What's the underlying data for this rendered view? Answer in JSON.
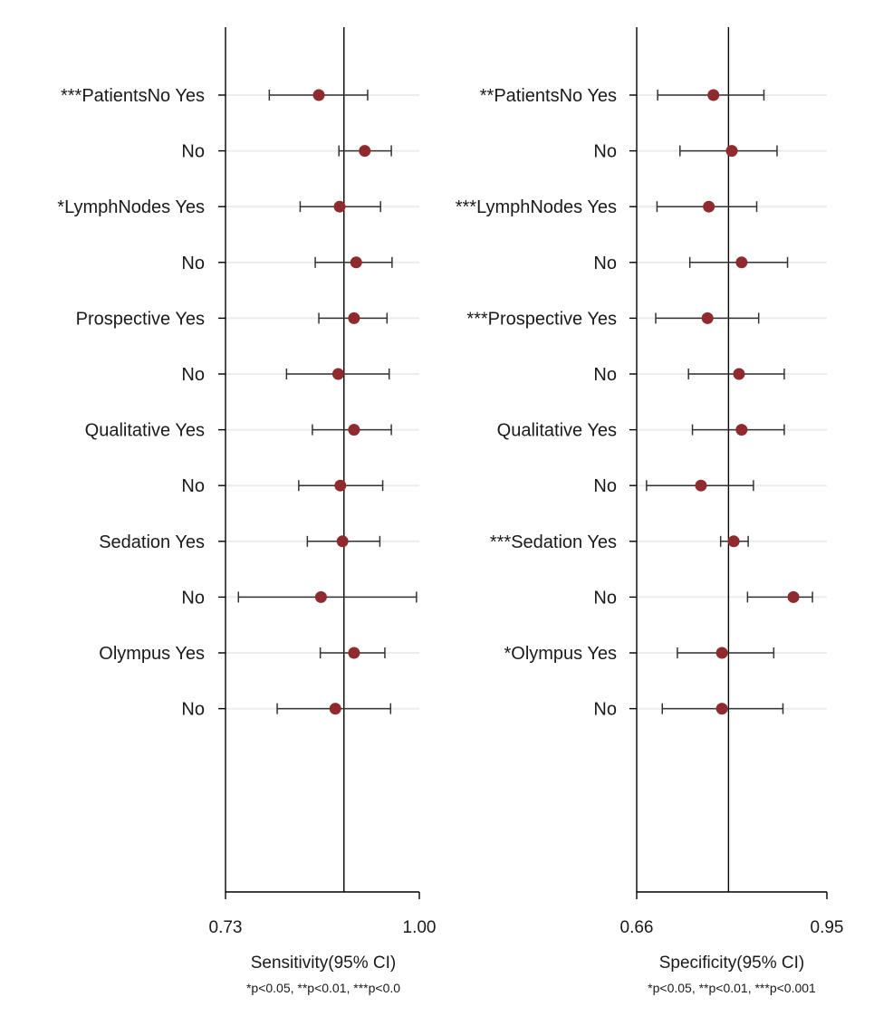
{
  "colors": {
    "marker": "#8f2a2f",
    "axis": "#000000",
    "band": "#ececec",
    "whisker": "#333333"
  },
  "chart_data": [
    {
      "type": "forest",
      "xlabel": "Sensitivity(95% CI)",
      "footnote": "*p<0.05, **p<0.01, ***p<0.0",
      "xlim": [
        0.73,
        1.0
      ],
      "xticks": [
        "0.73",
        "1.00"
      ],
      "reference_value": 0.895,
      "grid": true,
      "rows": [
        {
          "label": "***PatientsNo Yes",
          "est": 0.86,
          "lo": 0.791,
          "hi": 0.928
        },
        {
          "label": "No",
          "est": 0.924,
          "lo": 0.888,
          "hi": 0.961
        },
        {
          "label": "*LymphNodes Yes",
          "est": 0.889,
          "lo": 0.834,
          "hi": 0.946
        },
        {
          "label": "No",
          "est": 0.912,
          "lo": 0.855,
          "hi": 0.962
        },
        {
          "label": "Prospective Yes",
          "est": 0.909,
          "lo": 0.86,
          "hi": 0.955
        },
        {
          "label": "No",
          "est": 0.887,
          "lo": 0.815,
          "hi": 0.958
        },
        {
          "label": "Qualitative Yes",
          "est": 0.909,
          "lo": 0.851,
          "hi": 0.961
        },
        {
          "label": "No",
          "est": 0.89,
          "lo": 0.832,
          "hi": 0.949
        },
        {
          "label": "Sedation Yes",
          "est": 0.893,
          "lo": 0.844,
          "hi": 0.945
        },
        {
          "label": "No",
          "est": 0.863,
          "lo": 0.748,
          "hi": 0.996
        },
        {
          "label": "Olympus Yes",
          "est": 0.909,
          "lo": 0.862,
          "hi": 0.952
        },
        {
          "label": "No",
          "est": 0.883,
          "lo": 0.802,
          "hi": 0.96
        }
      ]
    },
    {
      "type": "forest",
      "xlabel": "Specificity(95% CI)",
      "footnote": "*p<0.05, **p<0.01, ***p<0.001",
      "xlim": [
        0.66,
        0.95
      ],
      "xticks": [
        "0.66",
        "0.95"
      ],
      "reference_value": 0.8,
      "grid": true,
      "rows": [
        {
          "label": "**PatientsNo Yes",
          "est": 0.777,
          "lo": 0.692,
          "hi": 0.854
        },
        {
          "label": "No",
          "est": 0.805,
          "lo": 0.726,
          "hi": 0.874
        },
        {
          "label": "***LymphNodes Yes",
          "est": 0.77,
          "lo": 0.691,
          "hi": 0.843
        },
        {
          "label": "No",
          "est": 0.82,
          "lo": 0.741,
          "hi": 0.89
        },
        {
          "label": "***Prospective Yes",
          "est": 0.768,
          "lo": 0.689,
          "hi": 0.846
        },
        {
          "label": "No",
          "est": 0.816,
          "lo": 0.739,
          "hi": 0.885
        },
        {
          "label": "Qualitative Yes",
          "est": 0.82,
          "lo": 0.745,
          "hi": 0.885
        },
        {
          "label": "No",
          "est": 0.758,
          "lo": 0.675,
          "hi": 0.838
        },
        {
          "label": "***Sedation Yes",
          "est": 0.808,
          "lo": 0.788,
          "hi": 0.83
        },
        {
          "label": "No",
          "est": 0.899,
          "lo": 0.829,
          "hi": 0.928
        },
        {
          "label": "*Olympus Yes",
          "est": 0.79,
          "lo": 0.722,
          "hi": 0.869
        },
        {
          "label": "No",
          "est": 0.79,
          "lo": 0.699,
          "hi": 0.883
        }
      ]
    }
  ]
}
